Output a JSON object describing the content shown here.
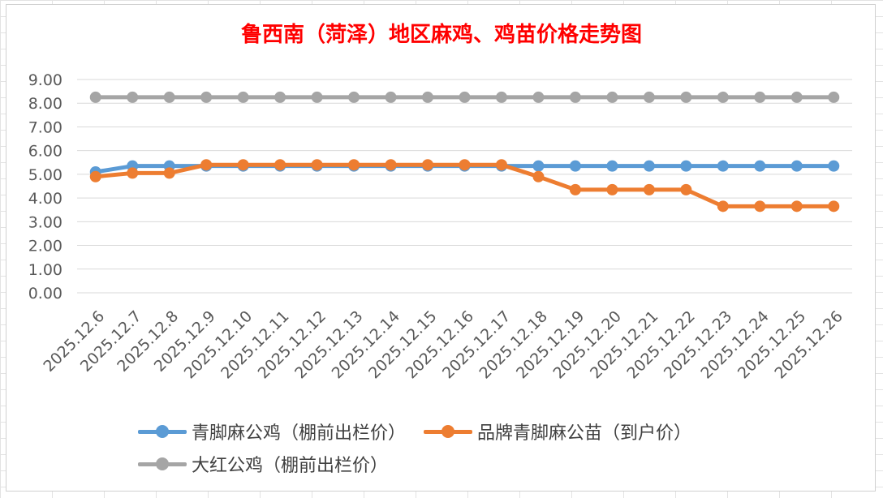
{
  "chart_data": {
    "type": "line",
    "title": "鲁西南（菏泽）地区麻鸡、鸡苗价格走势图",
    "categories": [
      "2025.12.6",
      "2025.12.7",
      "2025.12.8",
      "2025.12.9",
      "2025.12.10",
      "2025.12.11",
      "2025.12.12",
      "2025.12.13",
      "2025.12.14",
      "2025.12.15",
      "2025.12.16",
      "2025.12.17",
      "2025.12.18",
      "2025.12.19",
      "2025.12.20",
      "2025.12.21",
      "2025.12.22",
      "2025.12.23",
      "2025.12.24",
      "2025.12.25",
      "2025.12.26"
    ],
    "series": [
      {
        "name": "青脚麻公鸡（棚前出栏价）",
        "color": "#5b9bd5",
        "values": [
          5.1,
          5.35,
          5.35,
          5.35,
          5.35,
          5.35,
          5.35,
          5.35,
          5.35,
          5.35,
          5.35,
          5.35,
          5.35,
          5.35,
          5.35,
          5.35,
          5.35,
          5.35,
          5.35,
          5.35,
          5.35
        ]
      },
      {
        "name": "品牌青脚麻公苗（到户价）",
        "color": "#ed7d31",
        "values": [
          4.9,
          5.05,
          5.05,
          5.4,
          5.4,
          5.4,
          5.4,
          5.4,
          5.4,
          5.4,
          5.4,
          5.4,
          4.9,
          4.35,
          4.35,
          4.35,
          4.35,
          3.65,
          3.65,
          3.65,
          3.65
        ]
      },
      {
        "name": "大红公鸡（棚前出栏价）",
        "color": "#a5a5a5",
        "values": [
          8.25,
          8.25,
          8.25,
          8.25,
          8.25,
          8.25,
          8.25,
          8.25,
          8.25,
          8.25,
          8.25,
          8.25,
          8.25,
          8.25,
          8.25,
          8.25,
          8.25,
          8.25,
          8.25,
          8.25,
          8.25
        ]
      }
    ],
    "ylim": [
      0,
      9
    ],
    "yticks": [
      "0.00",
      "1.00",
      "2.00",
      "3.00",
      "4.00",
      "5.00",
      "6.00",
      "7.00",
      "8.00",
      "9.00"
    ],
    "grid": true,
    "legend": "bottom"
  }
}
